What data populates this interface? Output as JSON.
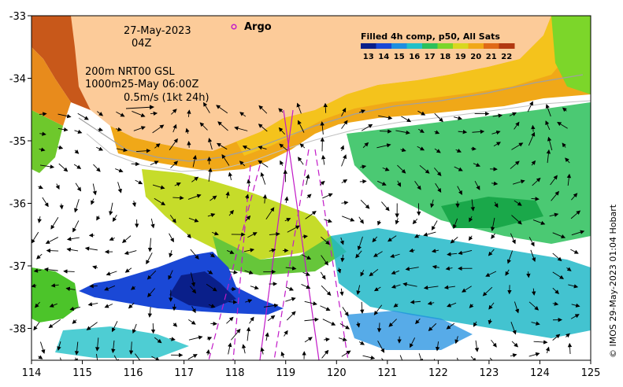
{
  "map": {
    "date": "27-May-2023",
    "time": "04Z",
    "line1": "200m  NRT00 GSL",
    "line2": "1000m25-May 06:00Z",
    "scale_label": "0.5m/s (1kt 24h)",
    "argo_label": "Argo",
    "credit": "© IMOS 29-May-2023 01:04 Hobart",
    "colorbar": {
      "title": "Filled 4h comp, p50, All Sats",
      "ticks": [
        "13",
        "14",
        "15",
        "16",
        "17",
        "18",
        "19",
        "20",
        "21",
        "22"
      ],
      "colors": [
        "#0a1f8a",
        "#1a48d6",
        "#1f8fe0",
        "#22c0c8",
        "#2cc05a",
        "#7cd62a",
        "#d8d820",
        "#f0a818",
        "#e06a18",
        "#b23810"
      ]
    },
    "x_ticks": [
      "114",
      "115",
      "116",
      "117",
      "118",
      "119",
      "120",
      "121",
      "122",
      "123",
      "124",
      "125"
    ],
    "y_ticks": [
      "-33",
      "-34",
      "-35",
      "-36",
      "-37",
      "-38"
    ],
    "colors": {
      "land": "#fccb99",
      "track": "#c21ac8",
      "coast": "#a0a0a0"
    }
  }
}
